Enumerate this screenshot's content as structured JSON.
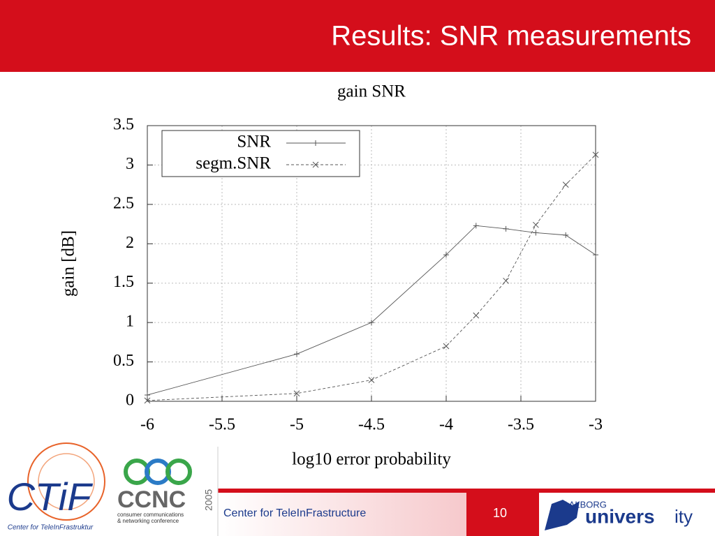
{
  "slide": {
    "title": "Results: SNR measurements",
    "footer_text": "Center for TeleInFrastructure",
    "page_number": "10",
    "logo_left_name": "CTiF",
    "logo_left_caption": "Center for TeleInFrastruktur",
    "logo_mid_name": "CCNC",
    "logo_mid_year": "2005",
    "logo_mid_caption_1": "consumer communications",
    "logo_mid_caption_2": "& networking conference",
    "logo_right_top": "AALBORG",
    "logo_right_main": "univers",
    "logo_right_tail": "ity"
  },
  "chart_data": {
    "type": "line",
    "title": "gain SNR",
    "xlabel": "log10 error probability",
    "ylabel": "gain [dB]",
    "x": [
      -6,
      -5,
      -4.5,
      -4,
      -3.8,
      -3.6,
      -3.4,
      -3.2,
      -3
    ],
    "series": [
      {
        "name": "SNR",
        "color": "#555555",
        "linestyle": "solid",
        "marker": "+",
        "values": [
          0.08,
          0.6,
          1.0,
          1.86,
          2.23,
          2.19,
          2.14,
          2.11,
          1.86
        ]
      },
      {
        "name": "segm.SNR",
        "color": "#555555",
        "linestyle": "dashed",
        "marker": "x",
        "values": [
          0.01,
          0.1,
          0.27,
          0.7,
          1.09,
          1.53,
          2.24,
          2.75,
          3.13
        ]
      }
    ],
    "xlim": [
      -6,
      -3
    ],
    "ylim": [
      0,
      3.5
    ],
    "xticks": [
      -6,
      -5.5,
      -5,
      -4.5,
      -4,
      -3.5,
      -3
    ],
    "yticks": [
      0,
      0.5,
      1,
      1.5,
      2,
      2.5,
      3,
      3.5
    ],
    "grid": true,
    "legend": "upper left"
  }
}
